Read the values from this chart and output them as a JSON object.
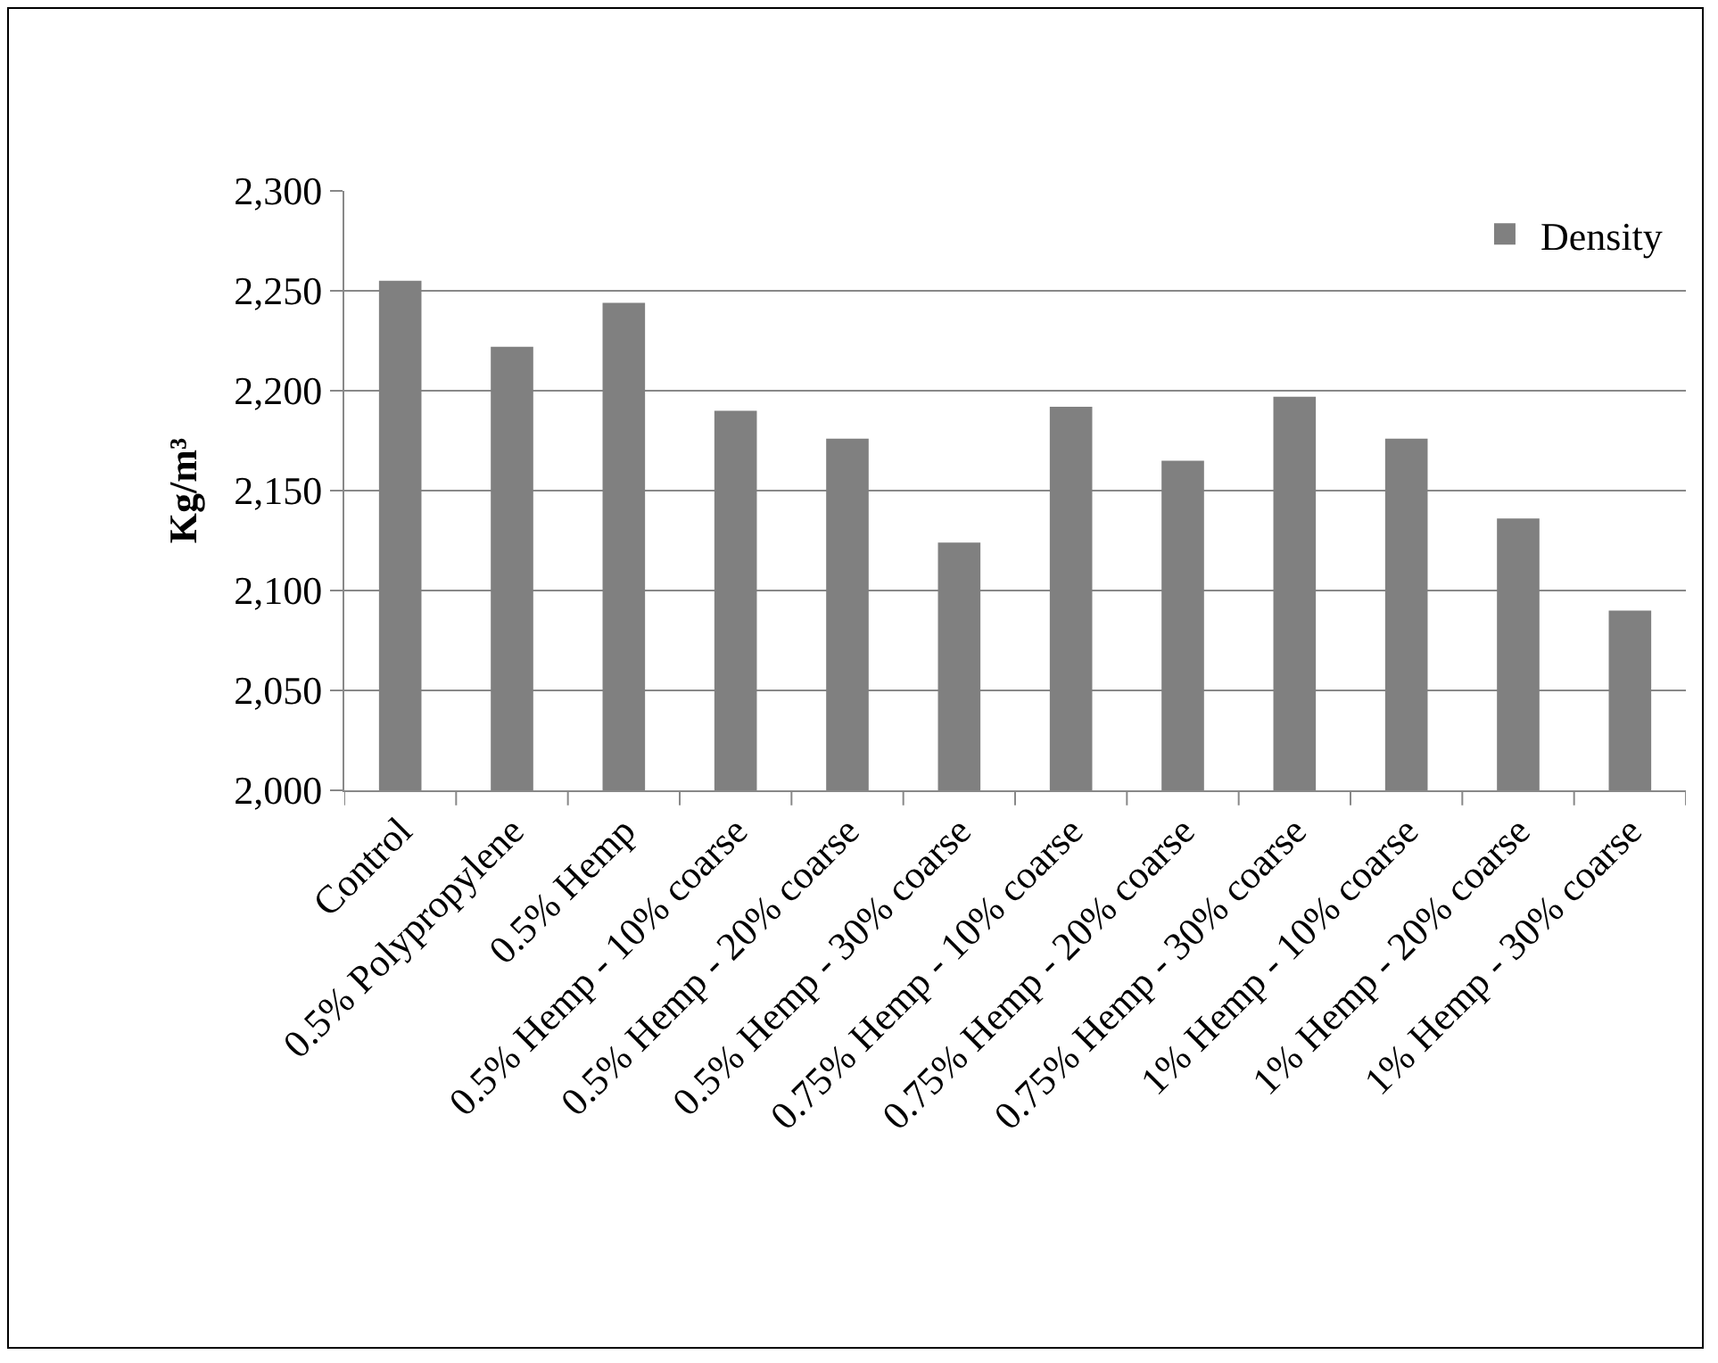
{
  "chart_data": {
    "type": "bar",
    "ylabel": "Kg/m³",
    "categories": [
      "Control",
      "0.5% Polypropylene",
      "0.5% Hemp",
      "0.5% Hemp - 10% coarse",
      "0.5% Hemp - 20% coarse",
      "0.5% Hemp - 30% coarse",
      "0.75% Hemp - 10% coarse",
      "0.75% Hemp - 20% coarse",
      "0.75% Hemp - 30% coarse",
      "1% Hemp - 10% coarse",
      "1% Hemp - 20% coarse",
      "1% Hemp - 30% coarse"
    ],
    "series": [
      {
        "name": "Density",
        "color": "#808080",
        "values": [
          2255,
          2222,
          2244,
          2190,
          2176,
          2124,
          2192,
          2165,
          2197,
          2176,
          2136,
          2090
        ]
      }
    ],
    "ylim": [
      2000,
      2300
    ],
    "yticks": [
      {
        "value": 2000,
        "label": "2,000"
      },
      {
        "value": 2050,
        "label": "2,050"
      },
      {
        "value": 2100,
        "label": "2,100"
      },
      {
        "value": 2150,
        "label": "2,150"
      },
      {
        "value": 2200,
        "label": "2,200"
      },
      {
        "value": 2250,
        "label": "2,250"
      },
      {
        "value": 2300,
        "label": "2,300"
      }
    ],
    "grid": "y",
    "legend": "top right"
  }
}
